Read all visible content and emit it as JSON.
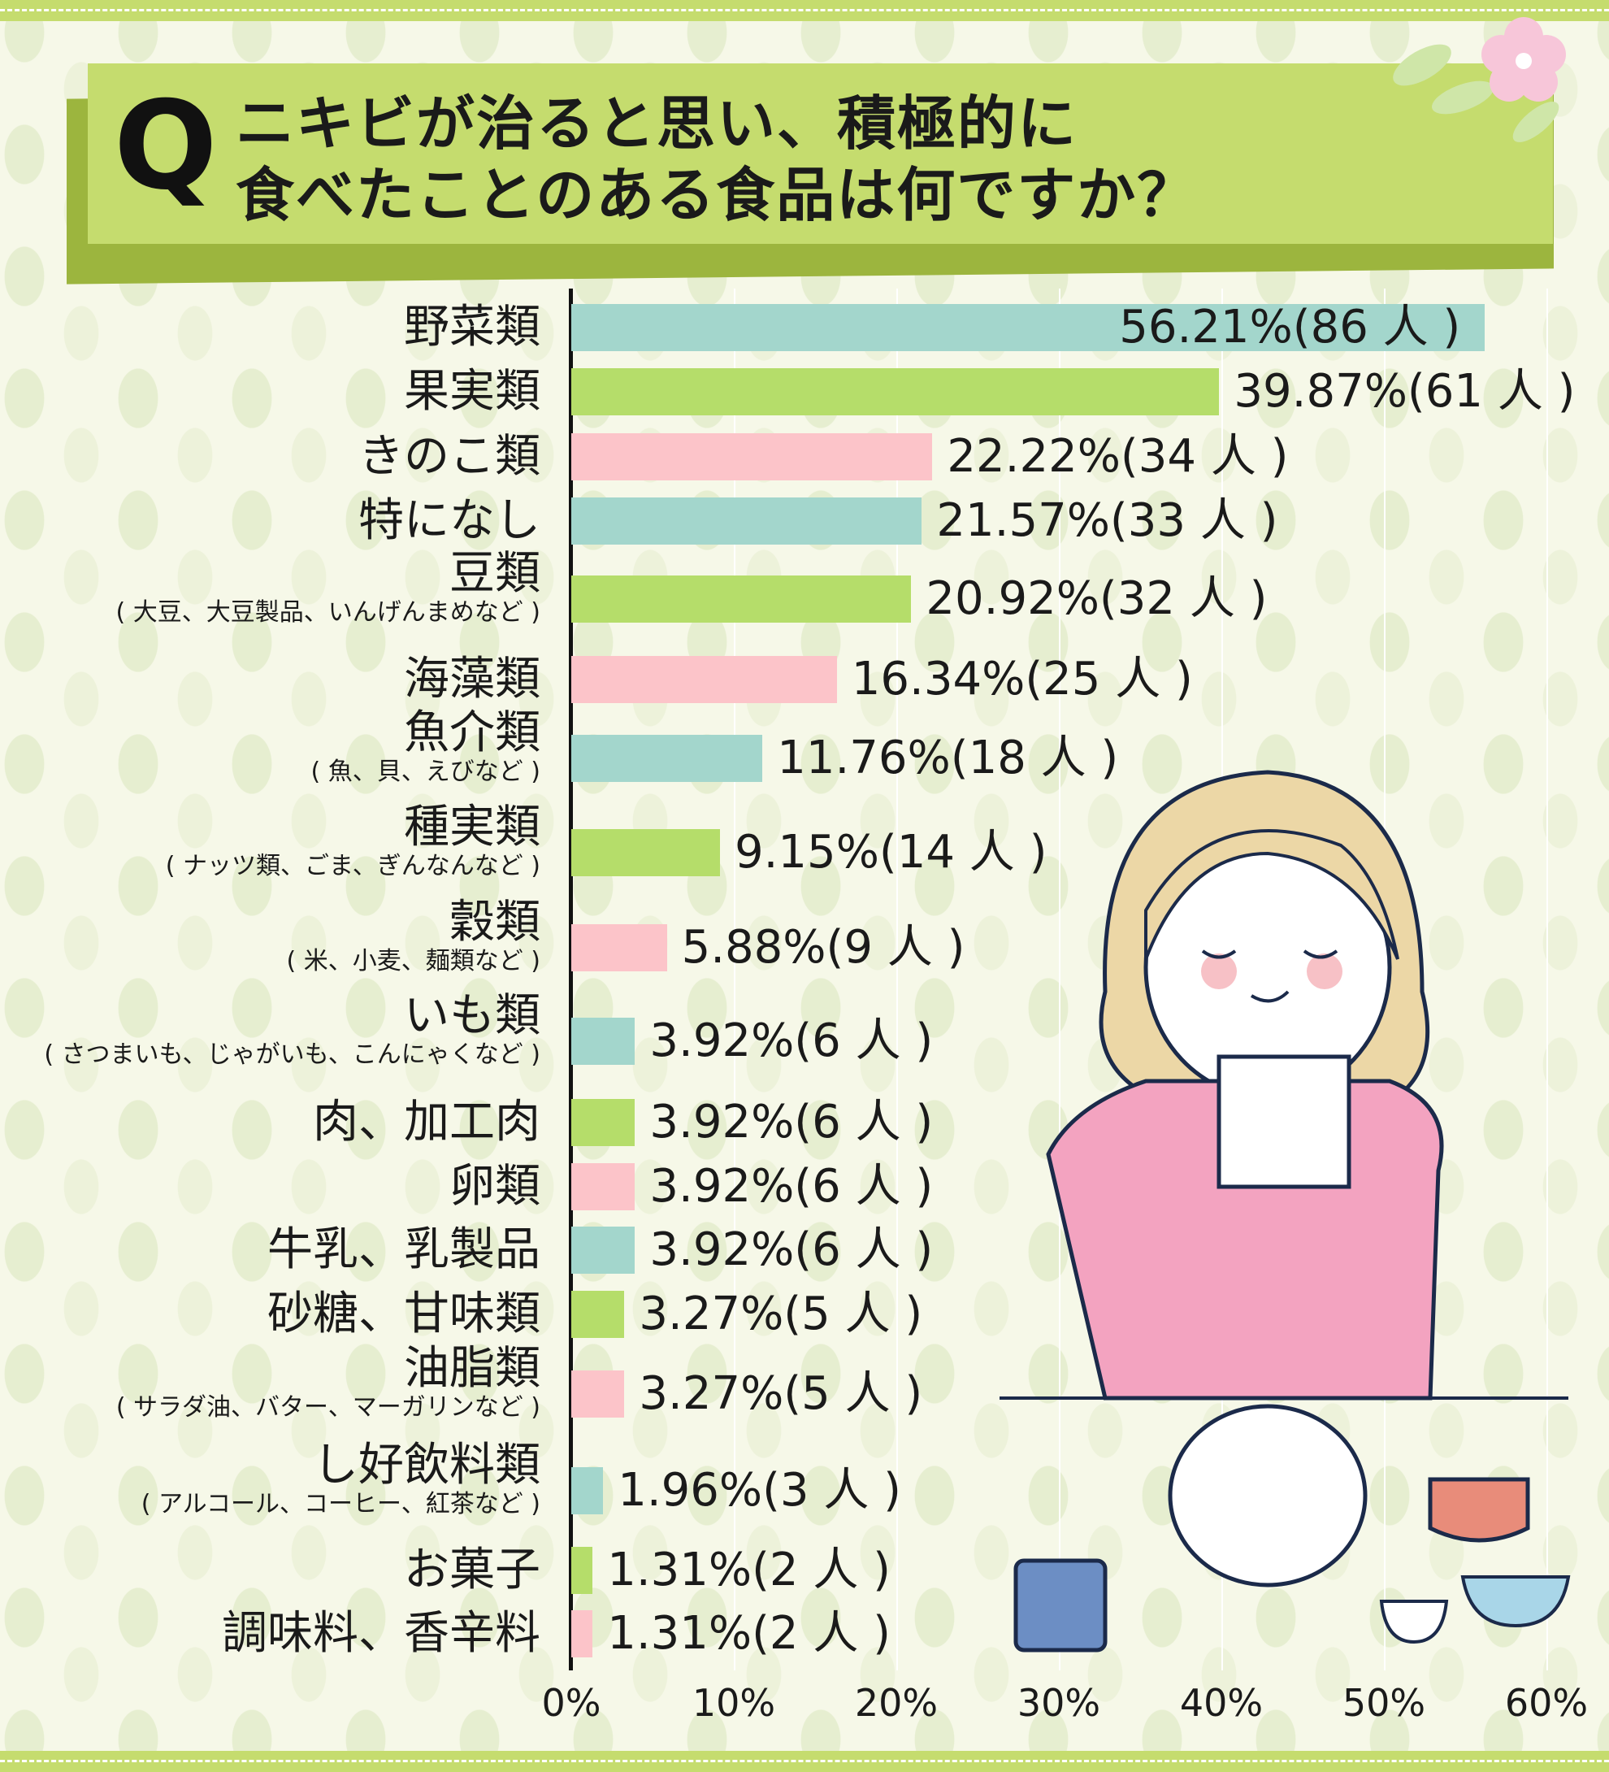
{
  "title": {
    "q": "Q",
    "line1": "ニキビが治ると思い、積極的に",
    "line2": "食べたことのある食品は何ですか？"
  },
  "colors": {
    "teal": "#a3d6cc",
    "green": "#b5dd6a",
    "pink": "#fcc4c9",
    "title_bg": "#c5dc6e"
  },
  "chart_data": {
    "type": "bar",
    "orientation": "horizontal",
    "title": "ニキビが治ると思い、積極的に食べたことのある食品は何ですか？",
    "xlim": [
      0,
      60
    ],
    "x_ticks": [
      "0%",
      "10%",
      "20%",
      "30%",
      "40%",
      "50%",
      "60%"
    ],
    "grid": true,
    "categories": [
      {
        "label": "野菜類",
        "sub": "",
        "value": 56.21,
        "count": 86,
        "value_label": "56.21%(86 人 )",
        "color": "teal"
      },
      {
        "label": "果実類",
        "sub": "",
        "value": 39.87,
        "count": 61,
        "value_label": "39.87%(61 人 )",
        "color": "green"
      },
      {
        "label": "きのこ類",
        "sub": "",
        "value": 22.22,
        "count": 34,
        "value_label": "22.22%(34 人 )",
        "color": "pink"
      },
      {
        "label": "特になし",
        "sub": "",
        "value": 21.57,
        "count": 33,
        "value_label": "21.57%(33 人 )",
        "color": "teal"
      },
      {
        "label": "豆類",
        "sub": "( 大豆、大豆製品、いんげんまめなど )",
        "value": 20.92,
        "count": 32,
        "value_label": "20.92%(32 人 )",
        "color": "green"
      },
      {
        "label": "海藻類",
        "sub": "",
        "value": 16.34,
        "count": 25,
        "value_label": "16.34%(25 人 )",
        "color": "pink"
      },
      {
        "label": "魚介類",
        "sub": "( 魚、貝、えびなど )",
        "value": 11.76,
        "count": 18,
        "value_label": "11.76%(18 人 )",
        "color": "teal"
      },
      {
        "label": "種実類",
        "sub": "( ナッツ類、ごま、ぎんなんなど )",
        "value": 9.15,
        "count": 14,
        "value_label": "9.15%(14 人 )",
        "color": "green"
      },
      {
        "label": "穀類",
        "sub": "( 米、小麦、麺類など )",
        "value": 5.88,
        "count": 9,
        "value_label": "5.88%(9 人 )",
        "color": "pink"
      },
      {
        "label": "いも類",
        "sub": "( さつまいも、じゃがいも、こんにゃくなど )",
        "value": 3.92,
        "count": 6,
        "value_label": "3.92%(6 人 )",
        "color": "teal"
      },
      {
        "label": "肉、加工肉",
        "sub": "",
        "value": 3.92,
        "count": 6,
        "value_label": "3.92%(6 人 )",
        "color": "green"
      },
      {
        "label": "卵類",
        "sub": "",
        "value": 3.92,
        "count": 6,
        "value_label": "3.92%(6 人 )",
        "color": "pink"
      },
      {
        "label": "牛乳、乳製品",
        "sub": "",
        "value": 3.92,
        "count": 6,
        "value_label": "3.92%(6 人 )",
        "color": "teal"
      },
      {
        "label": "砂糖、甘味類",
        "sub": "",
        "value": 3.27,
        "count": 5,
        "value_label": "3.27%(5 人 )",
        "color": "green"
      },
      {
        "label": "油脂類",
        "sub": "( サラダ油、バター、マーガリンなど )",
        "value": 3.27,
        "count": 5,
        "value_label": "3.27%(5 人 )",
        "color": "pink"
      },
      {
        "label": "し好飲料類",
        "sub": "( アルコール、コーヒー、紅茶など )",
        "value": 1.96,
        "count": 3,
        "value_label": "1.96%(3 人 )",
        "color": "teal"
      },
      {
        "label": "お菓子",
        "sub": "",
        "value": 1.31,
        "count": 2,
        "value_label": "1.31%(2 人 )",
        "color": "green"
      },
      {
        "label": "調味料、香辛料",
        "sub": "",
        "value": 1.31,
        "count": 2,
        "value_label": "1.31%(2 人 )",
        "color": "pink"
      }
    ]
  }
}
